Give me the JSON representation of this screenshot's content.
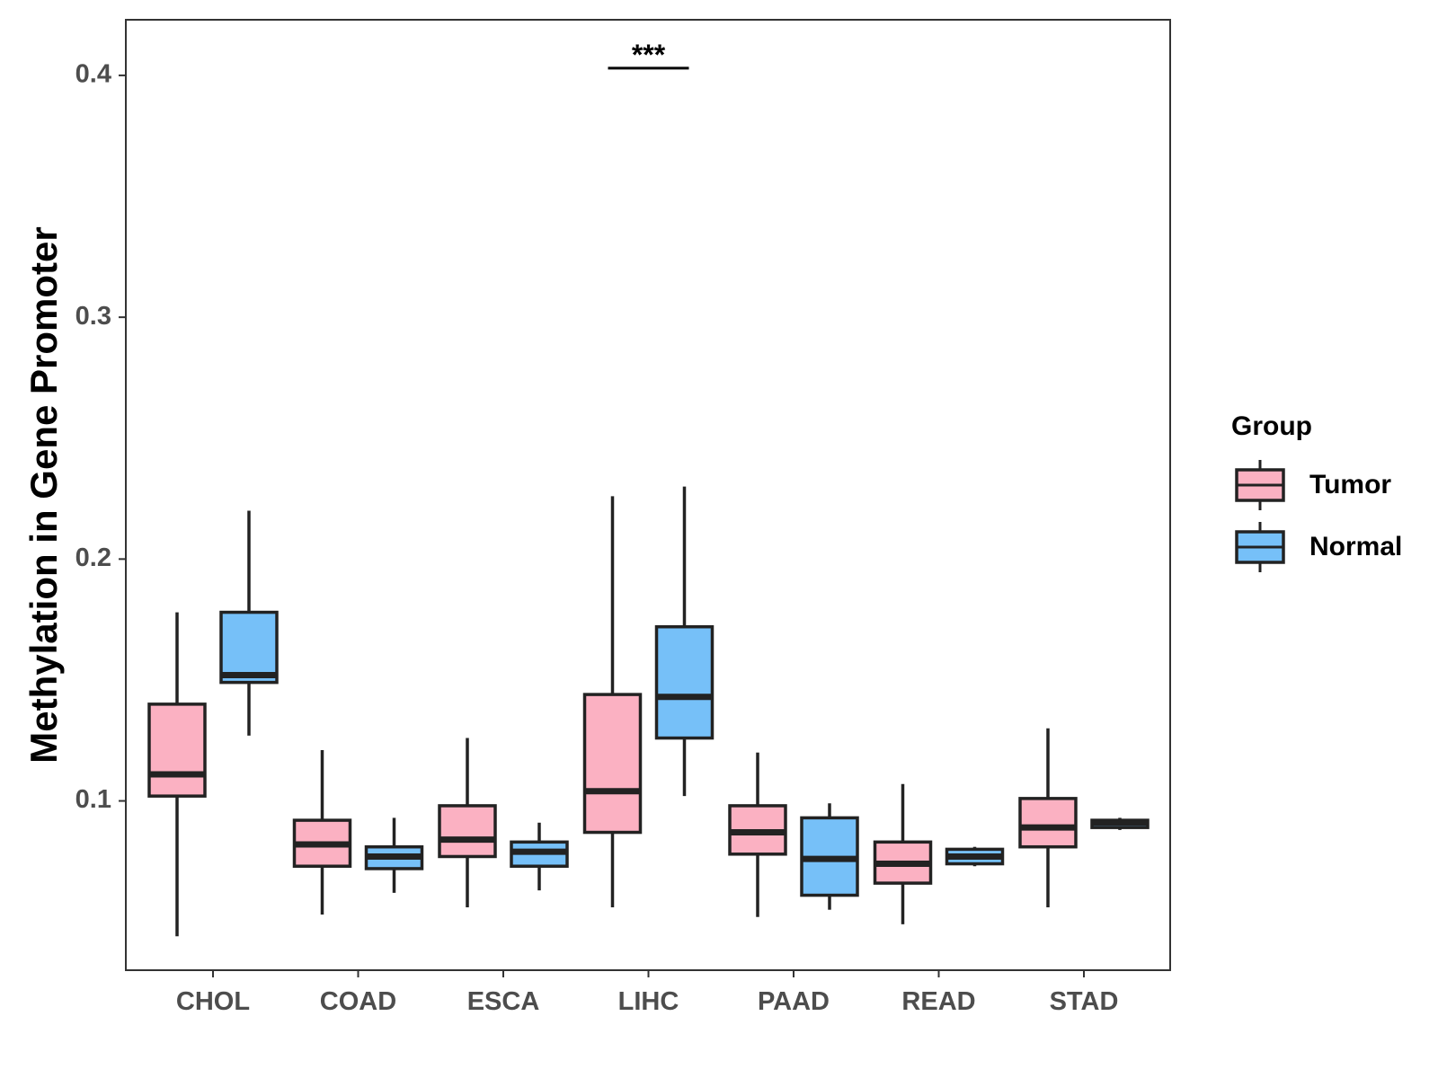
{
  "chart_data": {
    "type": "boxplot",
    "ylabel": "Methylation in Gene Promoter",
    "xlabel": "",
    "ylim": [
      0.03,
      0.423
    ],
    "yticks": [
      0.1,
      0.2,
      0.3,
      0.4
    ],
    "ytick_labels": [
      "0.1",
      "0.2",
      "0.3",
      "0.4"
    ],
    "categories": [
      "CHOL",
      "COAD",
      "ESCA",
      "LIHC",
      "PAAD",
      "READ",
      "STAD"
    ],
    "legend": {
      "title": "Group",
      "position": "right",
      "entries": [
        {
          "name": "Tumor",
          "color": "#FBB1C2"
        },
        {
          "name": "Normal",
          "color": "#76C0F8"
        }
      ]
    },
    "series": [
      {
        "name": "Tumor",
        "color": "#FBB1C2",
        "boxes": [
          {
            "category": "CHOL",
            "min": 0.044,
            "q1": 0.102,
            "median": 0.111,
            "q3": 0.14,
            "max": 0.178
          },
          {
            "category": "COAD",
            "min": 0.053,
            "q1": 0.073,
            "median": 0.082,
            "q3": 0.092,
            "max": 0.121
          },
          {
            "category": "ESCA",
            "min": 0.056,
            "q1": 0.077,
            "median": 0.084,
            "q3": 0.098,
            "max": 0.126
          },
          {
            "category": "LIHC",
            "min": 0.056,
            "q1": 0.087,
            "median": 0.104,
            "q3": 0.144,
            "max": 0.226
          },
          {
            "category": "PAAD",
            "min": 0.052,
            "q1": 0.078,
            "median": 0.087,
            "q3": 0.098,
            "max": 0.12
          },
          {
            "category": "READ",
            "min": 0.049,
            "q1": 0.066,
            "median": 0.074,
            "q3": 0.083,
            "max": 0.107
          },
          {
            "category": "STAD",
            "min": 0.056,
            "q1": 0.081,
            "median": 0.089,
            "q3": 0.101,
            "max": 0.13
          }
        ]
      },
      {
        "name": "Normal",
        "color": "#76C0F8",
        "boxes": [
          {
            "category": "CHOL",
            "min": 0.127,
            "q1": 0.149,
            "median": 0.152,
            "q3": 0.178,
            "max": 0.22
          },
          {
            "category": "COAD",
            "min": 0.062,
            "q1": 0.072,
            "median": 0.077,
            "q3": 0.081,
            "max": 0.093
          },
          {
            "category": "ESCA",
            "min": 0.063,
            "q1": 0.073,
            "median": 0.079,
            "q3": 0.083,
            "max": 0.091
          },
          {
            "category": "LIHC",
            "min": 0.102,
            "q1": 0.126,
            "median": 0.143,
            "q3": 0.172,
            "max": 0.23
          },
          {
            "category": "PAAD",
            "min": 0.055,
            "q1": 0.061,
            "median": 0.076,
            "q3": 0.093,
            "max": 0.099
          },
          {
            "category": "READ",
            "min": 0.073,
            "q1": 0.074,
            "median": 0.077,
            "q3": 0.08,
            "max": 0.081
          },
          {
            "category": "STAD",
            "min": 0.088,
            "q1": 0.089,
            "median": 0.091,
            "q3": 0.092,
            "max": 0.093
          }
        ]
      }
    ],
    "annotations": [
      {
        "category": "LIHC",
        "text": "***",
        "y": 0.403
      }
    ]
  }
}
